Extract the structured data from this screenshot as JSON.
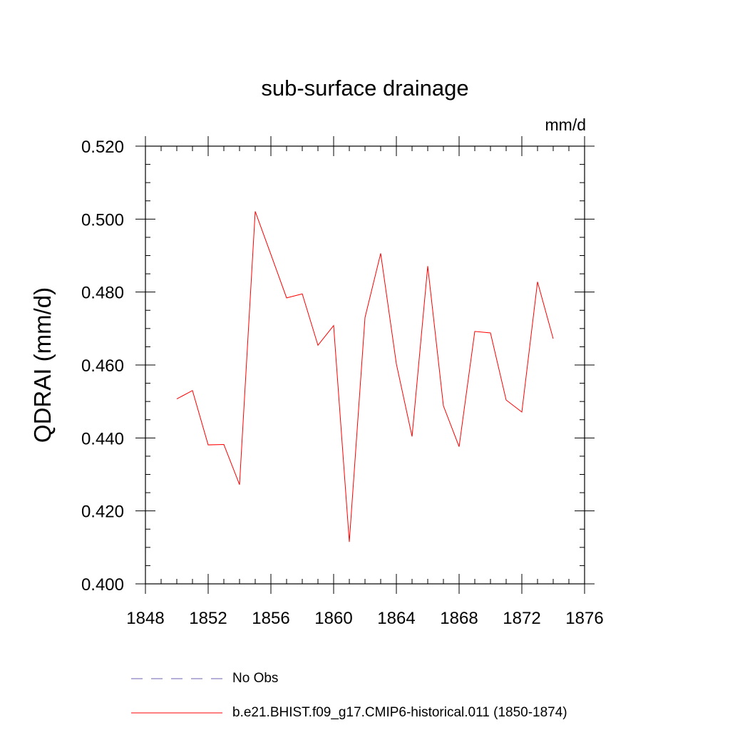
{
  "chart_data": {
    "type": "line",
    "title": "sub-surface drainage",
    "units_label": "mm/d",
    "ylabel": "QDRAI  (mm/d)",
    "xlabel": "",
    "xlim": [
      1848,
      1876
    ],
    "ylim": [
      0.4,
      0.52
    ],
    "x_ticks": [
      1848,
      1852,
      1856,
      1860,
      1864,
      1868,
      1872,
      1876
    ],
    "x_tick_labels": [
      "1848",
      "1852",
      "1856",
      "1860",
      "1864",
      "1868",
      "1872",
      "1876"
    ],
    "y_ticks": [
      0.4,
      0.42,
      0.44,
      0.46,
      0.48,
      0.5,
      0.52
    ],
    "y_tick_labels": [
      "0.400",
      "0.420",
      "0.440",
      "0.460",
      "0.480",
      "0.500",
      "0.520"
    ],
    "grid": false,
    "legend_position": "bottom",
    "series": [
      {
        "name": "b.e21.BHIST.f09_g17.CMIP6-historical.011 (1850-1874)",
        "color": "#ff0000",
        "style": "solid",
        "x": [
          1850,
          1851,
          1852,
          1853,
          1854,
          1855,
          1856,
          1857,
          1858,
          1859,
          1860,
          1861,
          1862,
          1863,
          1864,
          1865,
          1866,
          1867,
          1868,
          1869,
          1870,
          1871,
          1872,
          1873,
          1874
        ],
        "y": [
          0.4507,
          0.453,
          0.4381,
          0.4382,
          0.4272,
          0.5021,
          0.4903,
          0.4784,
          0.4795,
          0.4654,
          0.4708,
          0.4115,
          0.473,
          0.4906,
          0.4603,
          0.4404,
          0.4871,
          0.4488,
          0.4376,
          0.4692,
          0.4688,
          0.4504,
          0.4471,
          0.4828,
          0.4672
        ]
      }
    ],
    "legend": [
      {
        "label": "No Obs",
        "color": "#8a7fc0",
        "style": "dashed"
      },
      {
        "label": "b.e21.BHIST.f09_g17.CMIP6-historical.011 (1850-1874)",
        "color": "#ff0000",
        "style": "solid"
      }
    ]
  }
}
